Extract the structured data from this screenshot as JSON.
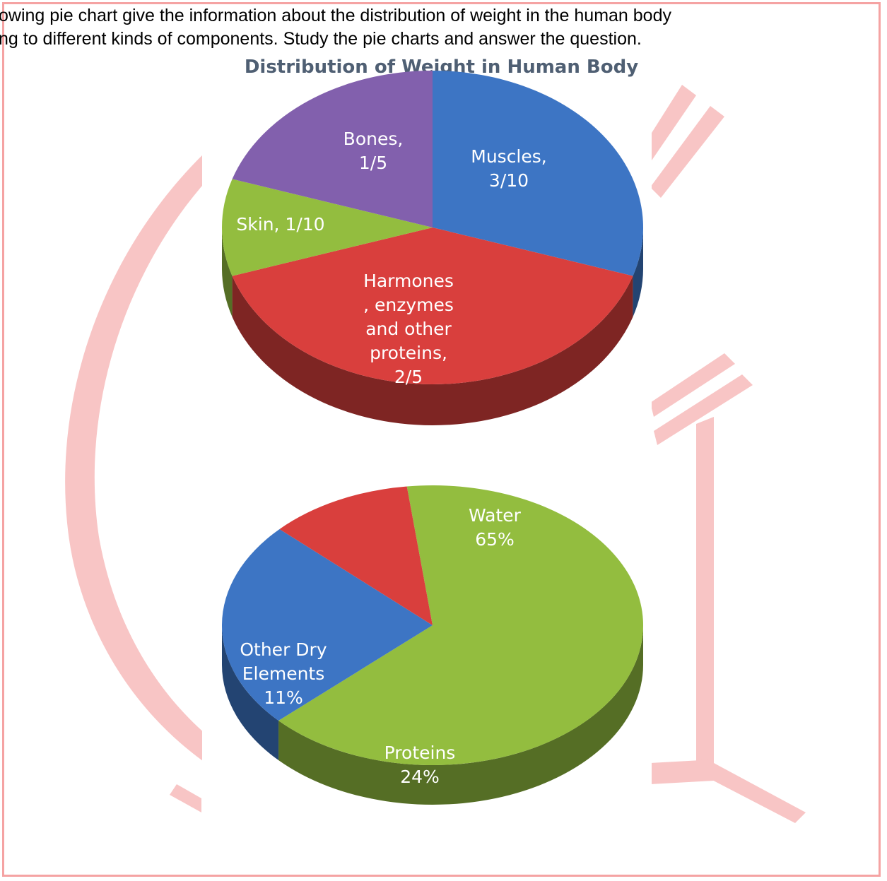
{
  "intro": {
    "line1": "owing pie chart give the information about the distribution of weight in the human body",
    "line2": "ng to different kinds of components. Study the pie charts and answer the question."
  },
  "colors": {
    "frame": "#f5a3a3",
    "watermark": "#f8c5c5",
    "title": "#4f5f73",
    "blue": "#3d75c4",
    "red": "#d93f3d",
    "green": "#93bd3f",
    "purple": "#8260ad"
  },
  "chart_data": [
    {
      "type": "pie",
      "title": "Distribution of Weight in Human Body",
      "slices": [
        {
          "label": "Muscles, 3/10",
          "value": 0.3,
          "color": "#3d75c4"
        },
        {
          "label": "Harmones, enzymes and other proteins, 2/5",
          "value": 0.4,
          "color": "#d93f3d"
        },
        {
          "label": "Skin, 1/10",
          "value": 0.1,
          "color": "#93bd3f"
        },
        {
          "label": "Bones, 1/5",
          "value": 0.2,
          "color": "#8260ad"
        }
      ],
      "display_labels": [
        [
          "Muscles,",
          "3/10"
        ],
        [
          "Harmones",
          ", enzymes",
          "and other",
          "proteins,",
          "2/5"
        ],
        [
          "Skin, 1/10"
        ],
        [
          "Bones,",
          "1/5"
        ]
      ]
    },
    {
      "type": "pie",
      "title": "",
      "slices": [
        {
          "label": "Water 65%",
          "value": 65,
          "color": "#93bd3f"
        },
        {
          "label": "Proteins 24%",
          "value": 24,
          "color": "#3d75c4"
        },
        {
          "label": "Other Dry Elements 11%",
          "value": 11,
          "color": "#d93f3d"
        }
      ],
      "display_labels": [
        [
          "Water",
          "65%"
        ],
        [
          "Proteins",
          "24%"
        ],
        [
          "Other Dry",
          "Elements",
          "11%"
        ]
      ]
    }
  ]
}
